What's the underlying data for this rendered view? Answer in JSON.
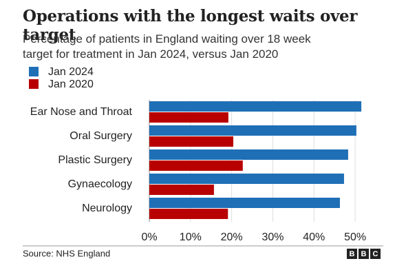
{
  "chart_data": {
    "type": "bar",
    "orientation": "horizontal",
    "title": "Operations with the longest waits over target",
    "subtitle": "Percentage of patients in England waiting over 18 week target for treatment in Jan 2024, versus Jan 2020",
    "categories": [
      "Ear Nose and Throat",
      "Oral Surgery",
      "Plastic Surgery",
      "Gynaecology",
      "Neurology"
    ],
    "series": [
      {
        "name": "Jan 2024",
        "color": "#1f6fb6",
        "values": [
          51.5,
          50.3,
          48.3,
          47.3,
          46.3
        ]
      },
      {
        "name": "Jan 2020",
        "color": "#b80000",
        "values": [
          19.2,
          20.4,
          22.7,
          15.7,
          19.1
        ]
      }
    ],
    "xlim": [
      0,
      55
    ],
    "xticks": [
      {
        "value": 0,
        "label": "0%"
      },
      {
        "value": 10,
        "label": "10%"
      },
      {
        "value": 20,
        "label": "20%"
      },
      {
        "value": 30,
        "label": "30%"
      },
      {
        "value": 40,
        "label": "40%"
      },
      {
        "value": 50,
        "label": "50%"
      }
    ],
    "grid": true,
    "source": "Source: NHS England",
    "logo": [
      "B",
      "B",
      "C"
    ]
  }
}
